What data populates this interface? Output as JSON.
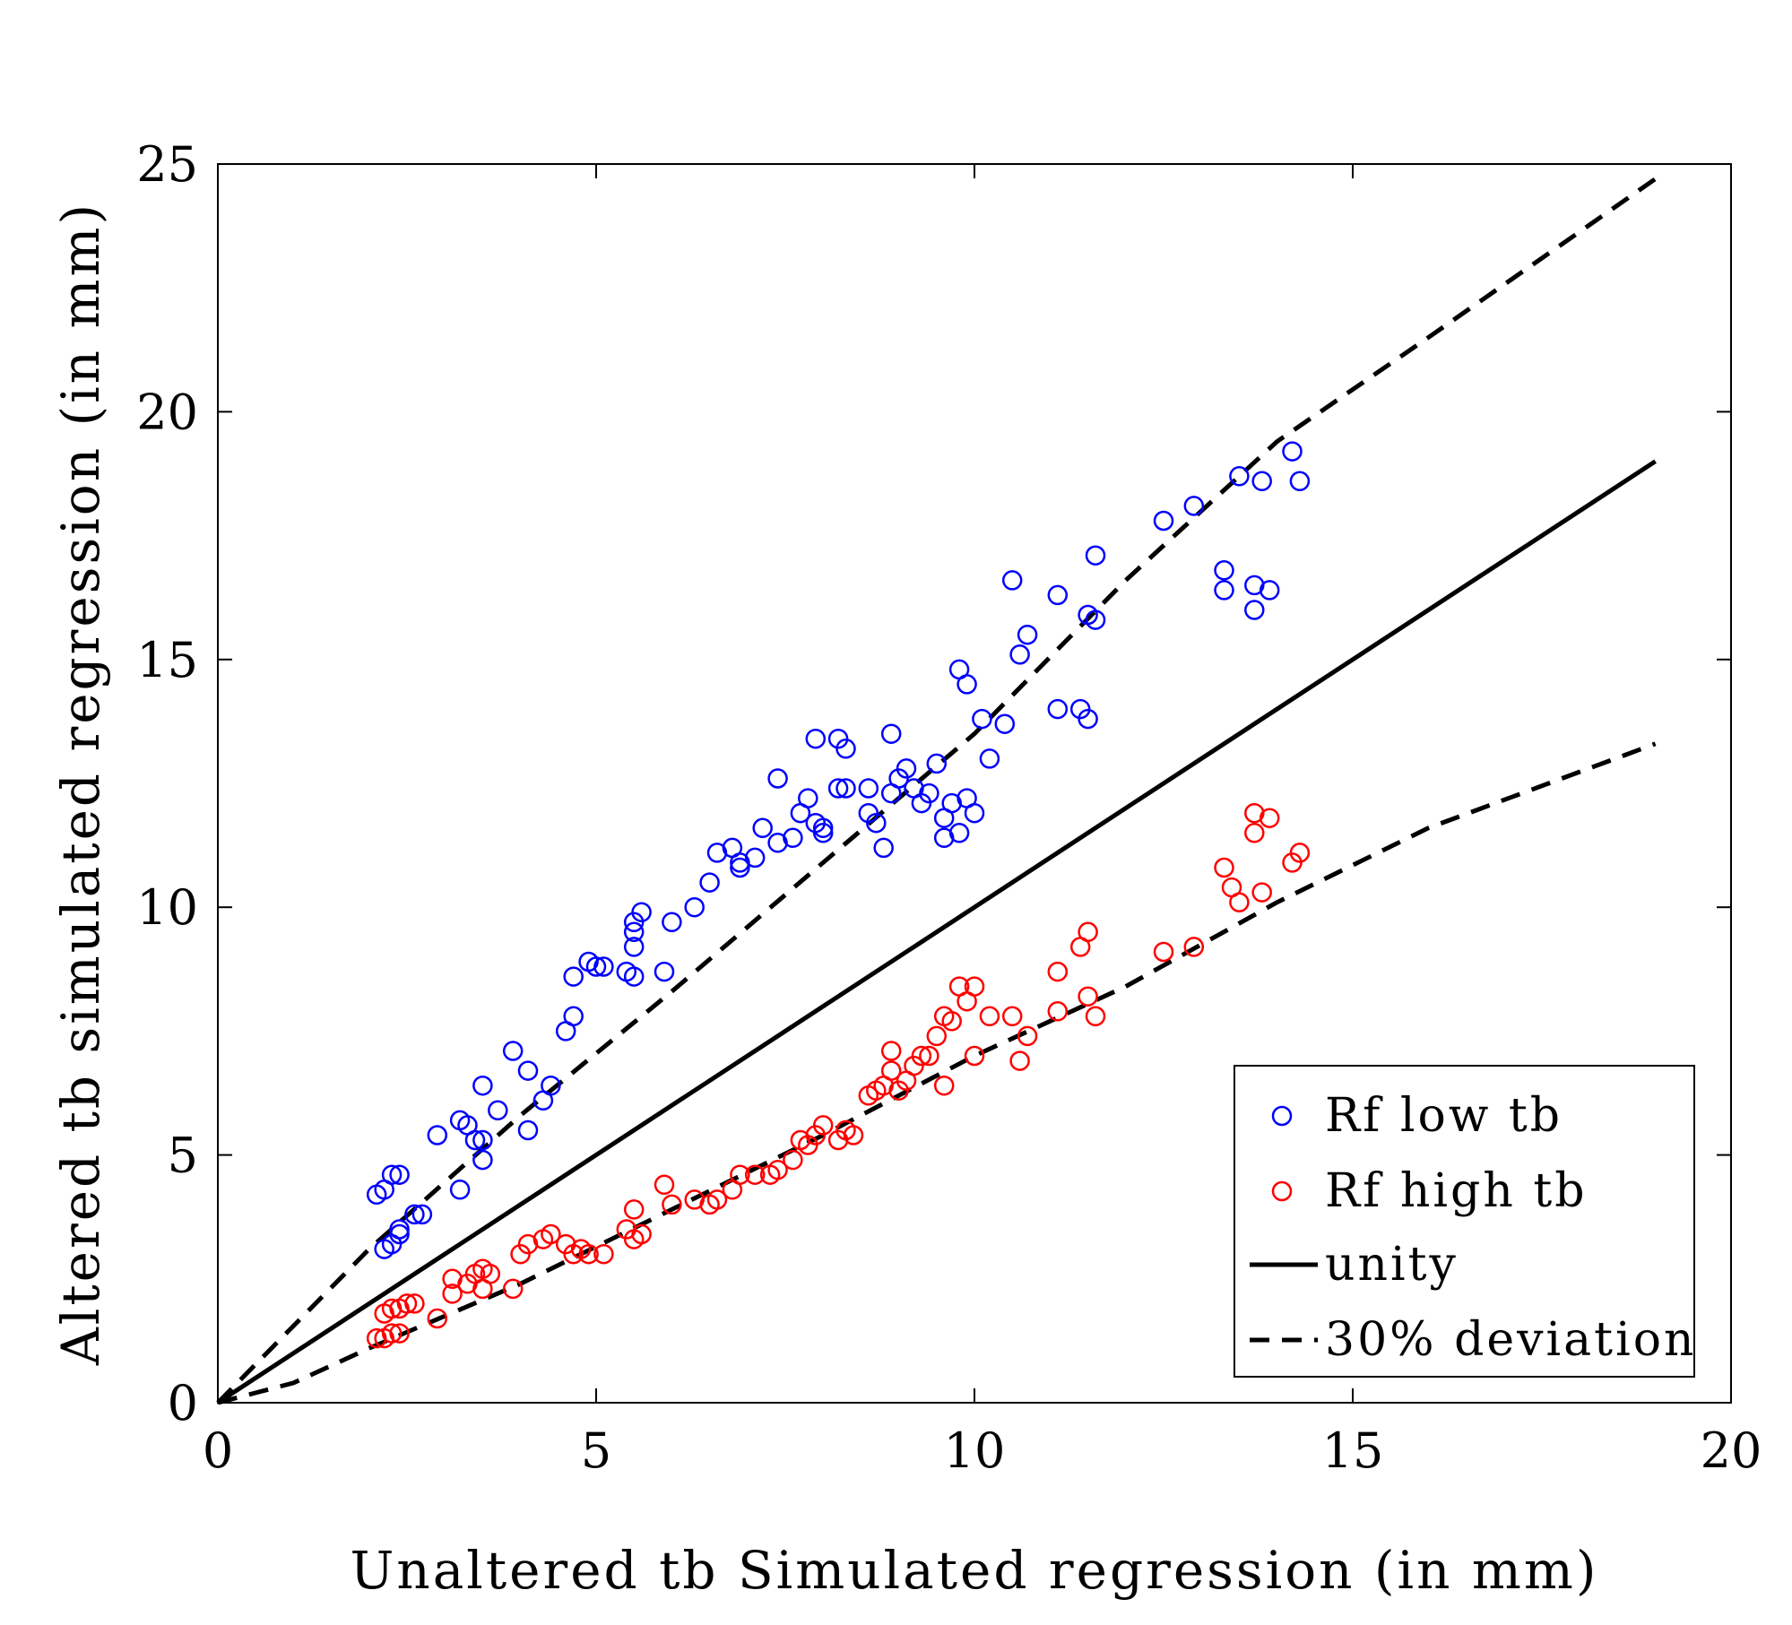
{
  "chart_data": {
    "type": "scatter",
    "title": "",
    "xlabel": "Unaltered tb Simulated regression (in mm)",
    "ylabel": "Altered tb simulated regression (in mm)",
    "xlim": [
      0,
      20
    ],
    "ylim": [
      0,
      25
    ],
    "xticks": [
      "0",
      "5",
      "10",
      "15",
      "20"
    ],
    "yticks": [
      "0",
      "5",
      "10",
      "15",
      "20",
      "25"
    ],
    "grid": false,
    "legend_position": "bottom-right",
    "series": [
      {
        "name": "Rf low tb",
        "kind": "markers",
        "color": "#0000ff",
        "points": [
          [
            2.1,
            4.2
          ],
          [
            2.2,
            4.3
          ],
          [
            2.3,
            4.6
          ],
          [
            2.4,
            4.6
          ],
          [
            2.2,
            3.1
          ],
          [
            2.3,
            3.2
          ],
          [
            2.4,
            3.4
          ],
          [
            2.4,
            3.5
          ],
          [
            2.6,
            3.8
          ],
          [
            2.7,
            3.8
          ],
          [
            2.9,
            5.4
          ],
          [
            3.2,
            4.3
          ],
          [
            3.2,
            5.7
          ],
          [
            3.3,
            5.6
          ],
          [
            3.4,
            5.3
          ],
          [
            3.5,
            5.3
          ],
          [
            3.5,
            4.9
          ],
          [
            3.5,
            6.4
          ],
          [
            3.7,
            5.9
          ],
          [
            3.9,
            7.1
          ],
          [
            4.1,
            6.7
          ],
          [
            4.1,
            5.5
          ],
          [
            4.3,
            6.1
          ],
          [
            4.4,
            6.4
          ],
          [
            4.6,
            7.5
          ],
          [
            4.7,
            8.6
          ],
          [
            4.7,
            7.8
          ],
          [
            4.9,
            8.9
          ],
          [
            5.0,
            8.8
          ],
          [
            5.1,
            8.8
          ],
          [
            5.4,
            8.7
          ],
          [
            5.5,
            8.6
          ],
          [
            5.5,
            9.2
          ],
          [
            5.5,
            9.5
          ],
          [
            5.5,
            9.7
          ],
          [
            5.6,
            9.9
          ],
          [
            5.9,
            8.7
          ],
          [
            6.0,
            9.7
          ],
          [
            6.3,
            10.0
          ],
          [
            6.5,
            10.5
          ],
          [
            6.6,
            11.1
          ],
          [
            6.8,
            11.2
          ],
          [
            6.9,
            10.8
          ],
          [
            6.9,
            10.9
          ],
          [
            7.1,
            11.0
          ],
          [
            7.2,
            11.6
          ],
          [
            7.4,
            11.3
          ],
          [
            7.4,
            12.6
          ],
          [
            7.6,
            11.4
          ],
          [
            7.7,
            11.9
          ],
          [
            7.8,
            12.2
          ],
          [
            7.9,
            13.4
          ],
          [
            7.9,
            11.7
          ],
          [
            8.0,
            11.6
          ],
          [
            8.0,
            11.5
          ],
          [
            8.2,
            12.4
          ],
          [
            8.2,
            13.4
          ],
          [
            8.3,
            12.4
          ],
          [
            8.3,
            13.2
          ],
          [
            8.6,
            12.4
          ],
          [
            8.6,
            11.9
          ],
          [
            8.7,
            11.7
          ],
          [
            8.8,
            11.2
          ],
          [
            8.9,
            12.3
          ],
          [
            8.9,
            13.5
          ],
          [
            9.0,
            12.6
          ],
          [
            9.1,
            12.8
          ],
          [
            9.2,
            12.4
          ],
          [
            9.3,
            12.1
          ],
          [
            9.4,
            12.3
          ],
          [
            9.5,
            12.9
          ],
          [
            9.6,
            11.4
          ],
          [
            9.6,
            11.8
          ],
          [
            9.7,
            12.1
          ],
          [
            9.8,
            11.5
          ],
          [
            9.8,
            14.8
          ],
          [
            9.9,
            14.5
          ],
          [
            9.9,
            12.2
          ],
          [
            10.0,
            11.9
          ],
          [
            10.1,
            13.8
          ],
          [
            10.2,
            13.0
          ],
          [
            10.4,
            13.7
          ],
          [
            10.5,
            16.6
          ],
          [
            10.6,
            15.1
          ],
          [
            10.7,
            15.5
          ],
          [
            11.1,
            16.3
          ],
          [
            11.1,
            14.0
          ],
          [
            11.4,
            14.0
          ],
          [
            11.5,
            15.9
          ],
          [
            11.5,
            13.8
          ],
          [
            11.6,
            17.1
          ],
          [
            11.6,
            15.8
          ],
          [
            12.5,
            17.8
          ],
          [
            12.9,
            18.1
          ],
          [
            13.3,
            16.4
          ],
          [
            13.3,
            16.8
          ],
          [
            13.5,
            18.7
          ],
          [
            13.7,
            16.0
          ],
          [
            13.7,
            16.5
          ],
          [
            13.8,
            18.6
          ],
          [
            13.9,
            16.4
          ],
          [
            14.2,
            19.2
          ],
          [
            14.3,
            18.6
          ]
        ]
      },
      {
        "name": "Rf high tb",
        "kind": "markers",
        "color": "#ff0000",
        "points": [
          [
            2.1,
            1.3
          ],
          [
            2.2,
            1.3
          ],
          [
            2.3,
            1.4
          ],
          [
            2.4,
            1.4
          ],
          [
            2.2,
            1.8
          ],
          [
            2.3,
            1.9
          ],
          [
            2.4,
            1.9
          ],
          [
            2.5,
            2.0
          ],
          [
            2.6,
            2.0
          ],
          [
            2.9,
            1.7
          ],
          [
            3.1,
            2.2
          ],
          [
            3.1,
            2.5
          ],
          [
            3.3,
            2.4
          ],
          [
            3.4,
            2.6
          ],
          [
            3.5,
            2.7
          ],
          [
            3.5,
            2.3
          ],
          [
            3.6,
            2.6
          ],
          [
            3.9,
            2.3
          ],
          [
            4.0,
            3.0
          ],
          [
            4.1,
            3.2
          ],
          [
            4.3,
            3.3
          ],
          [
            4.4,
            3.4
          ],
          [
            4.6,
            3.2
          ],
          [
            4.7,
            3.0
          ],
          [
            4.8,
            3.1
          ],
          [
            4.9,
            3.0
          ],
          [
            5.1,
            3.0
          ],
          [
            5.4,
            3.5
          ],
          [
            5.5,
            3.9
          ],
          [
            5.5,
            3.3
          ],
          [
            5.6,
            3.4
          ],
          [
            5.9,
            4.4
          ],
          [
            6.0,
            4.0
          ],
          [
            6.3,
            4.1
          ],
          [
            6.5,
            4.0
          ],
          [
            6.6,
            4.1
          ],
          [
            6.8,
            4.3
          ],
          [
            6.9,
            4.6
          ],
          [
            7.1,
            4.6
          ],
          [
            7.3,
            4.6
          ],
          [
            7.4,
            4.7
          ],
          [
            7.6,
            4.9
          ],
          [
            7.7,
            5.3
          ],
          [
            7.8,
            5.2
          ],
          [
            7.9,
            5.4
          ],
          [
            8.0,
            5.6
          ],
          [
            8.2,
            5.3
          ],
          [
            8.3,
            5.5
          ],
          [
            8.4,
            5.4
          ],
          [
            8.6,
            6.2
          ],
          [
            8.7,
            6.3
          ],
          [
            8.8,
            6.4
          ],
          [
            8.9,
            6.7
          ],
          [
            8.9,
            7.1
          ],
          [
            9.0,
            6.3
          ],
          [
            9.1,
            6.5
          ],
          [
            9.2,
            6.8
          ],
          [
            9.3,
            7.0
          ],
          [
            9.4,
            7.0
          ],
          [
            9.5,
            7.4
          ],
          [
            9.6,
            6.4
          ],
          [
            9.6,
            7.8
          ],
          [
            9.7,
            7.7
          ],
          [
            9.8,
            8.4
          ],
          [
            9.9,
            8.1
          ],
          [
            10.0,
            8.4
          ],
          [
            10.0,
            7.0
          ],
          [
            10.2,
            7.8
          ],
          [
            10.5,
            7.8
          ],
          [
            10.6,
            6.9
          ],
          [
            10.7,
            7.4
          ],
          [
            11.1,
            7.9
          ],
          [
            11.1,
            8.7
          ],
          [
            11.4,
            9.2
          ],
          [
            11.5,
            9.5
          ],
          [
            11.5,
            8.2
          ],
          [
            11.6,
            7.8
          ],
          [
            12.5,
            9.1
          ],
          [
            12.9,
            9.2
          ],
          [
            13.3,
            10.8
          ],
          [
            13.4,
            10.4
          ],
          [
            13.5,
            10.1
          ],
          [
            13.7,
            11.9
          ],
          [
            13.7,
            11.5
          ],
          [
            13.8,
            10.3
          ],
          [
            13.9,
            11.8
          ],
          [
            14.2,
            10.9
          ],
          [
            14.3,
            11.1
          ]
        ]
      },
      {
        "name": "unity",
        "kind": "line",
        "color": "#000000",
        "points": [
          [
            0,
            0
          ],
          [
            19,
            19
          ]
        ]
      },
      {
        "name": "30% deviation",
        "kind": "dashed",
        "color": "#000000",
        "points": [
          [
            0,
            0
          ],
          [
            2,
            3.1
          ],
          [
            4,
            5.8
          ],
          [
            6,
            8.3
          ],
          [
            8,
            10.9
          ],
          [
            10,
            13.5
          ],
          [
            12,
            16.6
          ],
          [
            14,
            19.4
          ],
          [
            16,
            21.5
          ],
          [
            19,
            24.7
          ]
        ]
      },
      {
        "name": "30% deviation lower",
        "kind": "dashed",
        "legend": false,
        "color": "#000000",
        "points": [
          [
            0,
            0
          ],
          [
            1,
            0.4
          ],
          [
            2,
            1.1
          ],
          [
            4,
            2.4
          ],
          [
            6,
            3.9
          ],
          [
            8,
            5.4
          ],
          [
            10,
            7.0
          ],
          [
            12,
            8.4
          ],
          [
            14,
            10.1
          ],
          [
            16,
            11.6
          ],
          [
            19,
            13.3
          ]
        ]
      }
    ]
  }
}
